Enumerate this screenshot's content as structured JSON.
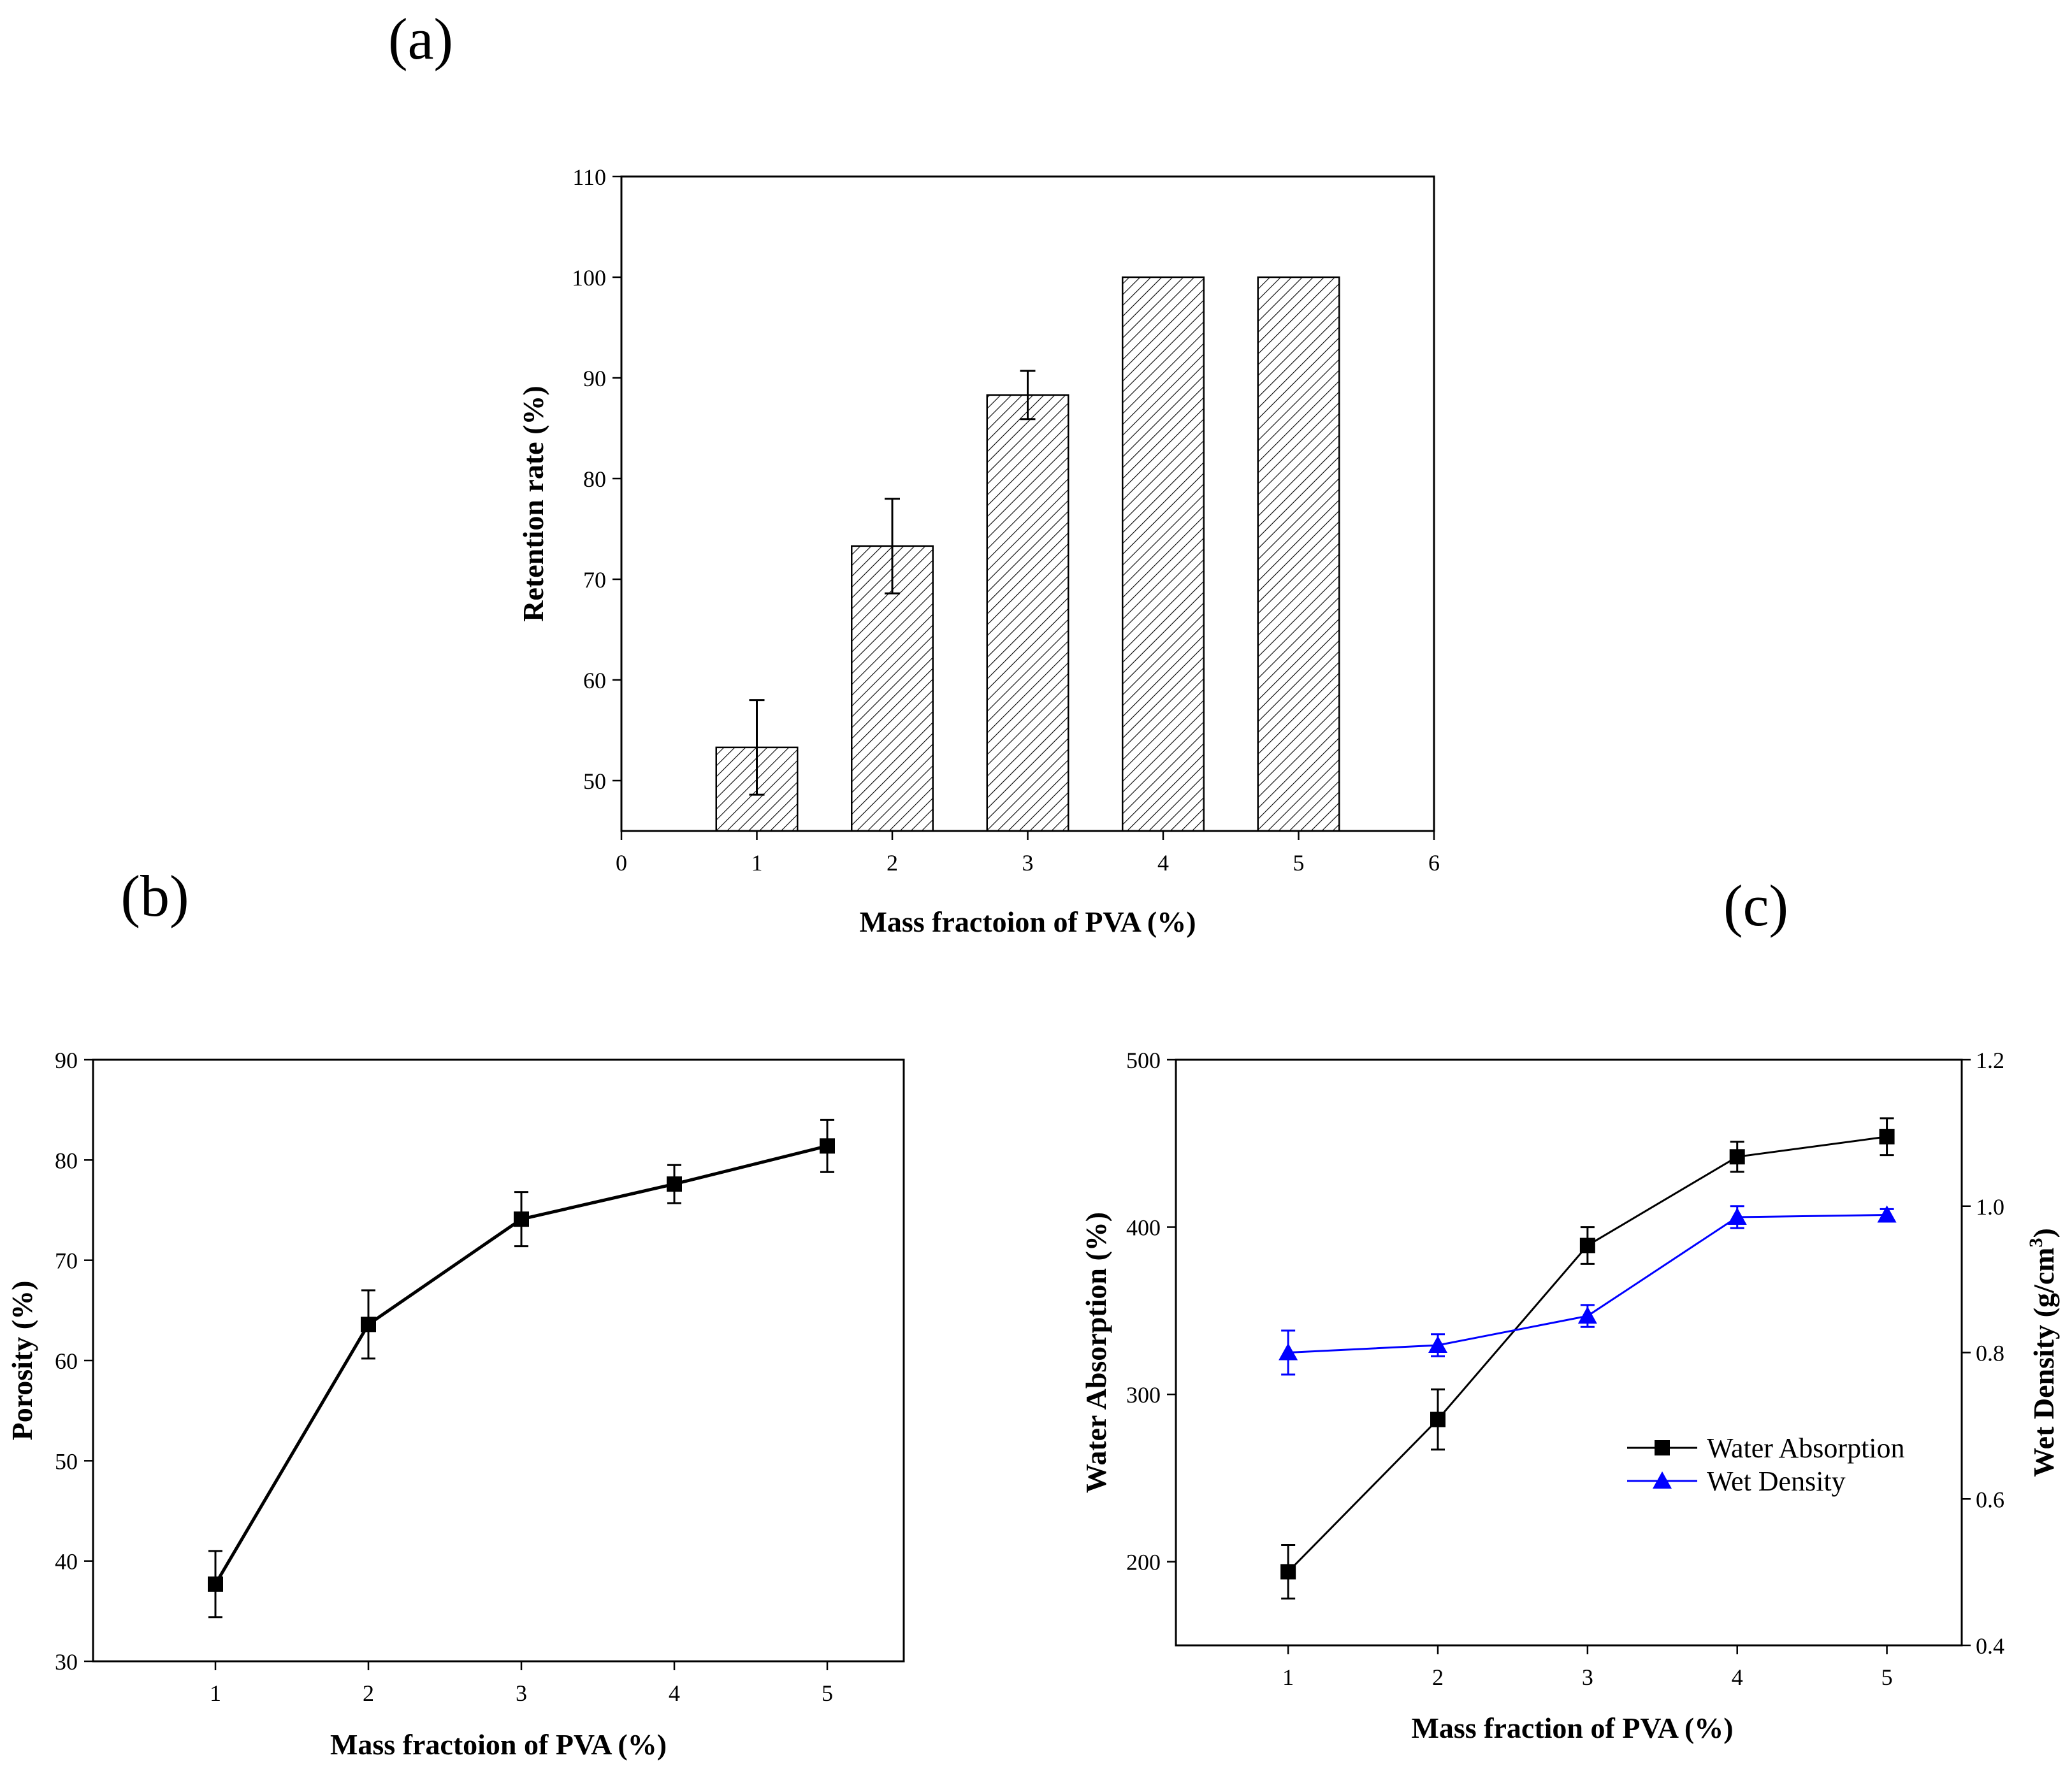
{
  "panels": {
    "a": "(a)",
    "b": "(b)",
    "c": "(c)"
  },
  "chart_data": [
    {
      "id": "a",
      "type": "bar",
      "title": "",
      "xlabel": "Mass fractoion of PVA (%)",
      "ylabel": "Retention rate (%)",
      "xlim": [
        0,
        6
      ],
      "ylim": [
        45,
        110
      ],
      "xticks": [
        "0",
        "1",
        "2",
        "3",
        "4",
        "5",
        "6"
      ],
      "yticks": [
        "50",
        "60",
        "70",
        "80",
        "90",
        "100",
        "110"
      ],
      "x": [
        1,
        2,
        3,
        4,
        5
      ],
      "values": [
        53.3,
        73.3,
        88.3,
        100,
        100
      ],
      "errors": [
        4.7,
        4.7,
        2.4,
        0,
        0
      ],
      "bar_width": 0.6,
      "pattern": "diagonal-hatch",
      "grid": false
    },
    {
      "id": "b",
      "type": "line",
      "title": "",
      "xlabel": "Mass fractoion of PVA (%)",
      "ylabel": "Porosity (%)",
      "xlim": [
        0.2,
        5.5
      ],
      "ylim": [
        30,
        90
      ],
      "xticks": [
        "1",
        "2",
        "3",
        "4",
        "5"
      ],
      "yticks": [
        "30",
        "40",
        "50",
        "60",
        "70",
        "80",
        "90"
      ],
      "series": [
        {
          "name": "Porosity",
          "x": [
            1,
            2,
            3,
            4,
            5
          ],
          "values": [
            37.7,
            63.6,
            74.1,
            77.6,
            81.4
          ],
          "errors": [
            3.3,
            3.4,
            2.7,
            1.9,
            2.6
          ],
          "marker": "square",
          "color": "#000000"
        }
      ],
      "grid": false
    },
    {
      "id": "c",
      "type": "line",
      "title": "",
      "xlabel": "Mass fraction of PVA (%)",
      "ylabel": "Water Absorption (%)",
      "ylabel_right": "Wet Density (g/cm",
      "ylabel_right_sup": "3",
      "ylabel_right_end": ")",
      "xlim": [
        0.25,
        5.5
      ],
      "ylim": [
        150,
        500
      ],
      "ylim_right": [
        0.4,
        1.2
      ],
      "xticks": [
        "1",
        "2",
        "3",
        "4",
        "5"
      ],
      "yticks": [
        "200",
        "300",
        "400",
        "500"
      ],
      "yticks_right": [
        "0.4",
        "0.6",
        "0.8",
        "1.0",
        "1.2"
      ],
      "legend_position": "center-right",
      "series": [
        {
          "name": "Water Absorption",
          "axis": "left",
          "x": [
            1,
            2,
            3,
            4,
            5
          ],
          "values": [
            194,
            285,
            389,
            442,
            454
          ],
          "errors": [
            16,
            18,
            11,
            9,
            11
          ],
          "marker": "square",
          "color": "#000000"
        },
        {
          "name": "Wet Density",
          "axis": "right",
          "x": [
            1,
            2,
            3,
            4,
            5
          ],
          "values": [
            0.8,
            0.81,
            0.85,
            0.985,
            0.988
          ],
          "errors": [
            0.03,
            0.015,
            0.015,
            0.015,
            0.008
          ],
          "marker": "triangle",
          "color": "#0000ff"
        }
      ],
      "grid": false
    }
  ]
}
